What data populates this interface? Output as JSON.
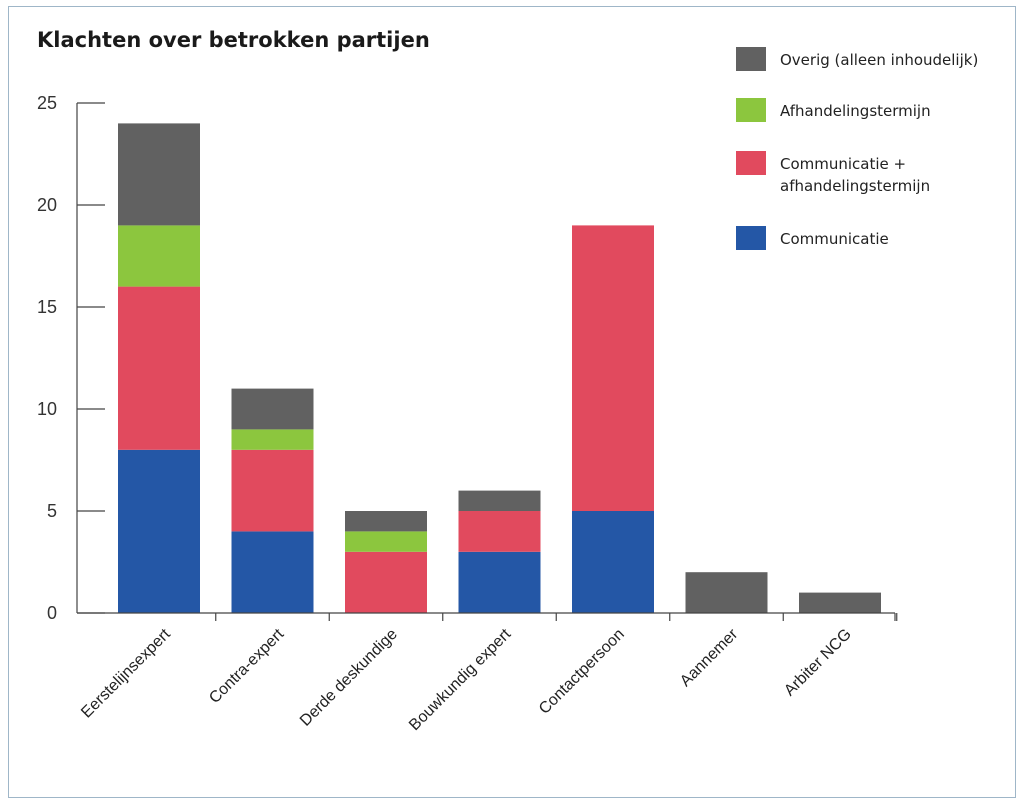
{
  "chart_data": {
    "type": "bar",
    "stacked": true,
    "title": "Klachten over betrokken partijen",
    "xlabel": "",
    "ylabel": "",
    "ylim": [
      0,
      25
    ],
    "yticks": [
      0,
      5,
      10,
      15,
      20,
      25
    ],
    "categories": [
      "Eerstelijnsexpert",
      "Contra-expert",
      "Derde deskundige",
      "Bouwkundig expert",
      "Contactpersoon",
      "Aannemer",
      "Arbiter NCG"
    ],
    "series": [
      {
        "name": "Communicatie",
        "color": "#2457a6",
        "values": [
          8,
          4,
          0,
          3,
          5,
          0,
          0
        ]
      },
      {
        "name": "Communicatie + afhandelingstermijn",
        "color": "#e14a5e",
        "values": [
          8,
          4,
          3,
          2,
          14,
          0,
          0
        ]
      },
      {
        "name": "Afhandelingstermijn",
        "color": "#8cc63e",
        "values": [
          3,
          1,
          1,
          0,
          0,
          0,
          0
        ]
      },
      {
        "name": "Overig (alleen inhoudelijk)",
        "color": "#616161",
        "values": [
          5,
          2,
          1,
          1,
          0,
          2,
          1
        ]
      }
    ],
    "legend": {
      "placement": "top-right",
      "order": [
        "Overig (alleen inhoudelijk)",
        "Afhandelingstermijn",
        "Communicatie + afhandelingstermijn",
        "Communicatie"
      ],
      "lines": [
        [
          "Overig (alleen inhoudelijk)"
        ],
        [
          "Afhandelingstermijn"
        ],
        [
          "Communicatie +",
          "afhandelingstermijn"
        ],
        [
          "Communicatie"
        ]
      ]
    },
    "grid": false
  }
}
